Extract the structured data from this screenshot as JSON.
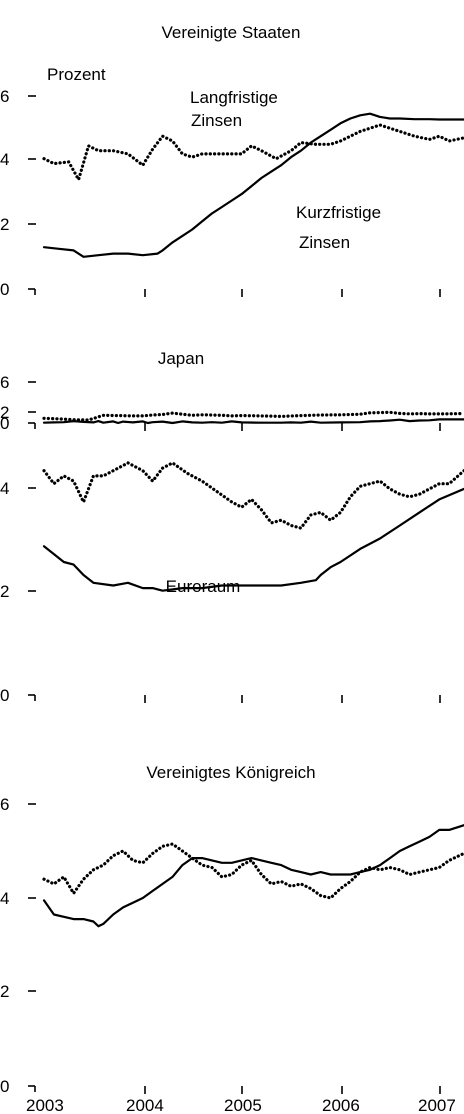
{
  "unit_label": "Prozent",
  "x_tick_labels": [
    "2003",
    "2004",
    "2005",
    "2006",
    "2007"
  ],
  "chart_data": [
    {
      "type": "line",
      "title": "Vereinigte Staaten",
      "ylabel": "Prozent",
      "ylim": [
        0,
        6
      ],
      "yticks": [
        "0",
        "2",
        "4",
        "6"
      ],
      "xlim": [
        2003,
        2007.25
      ],
      "annotations": [
        {
          "text": "Langfristige",
          "line": 1
        },
        {
          "text": "Zinsen",
          "line": 2
        },
        {
          "text": "Kurzfristige",
          "line": 1
        },
        {
          "text": "Zinsen",
          "line": 2
        }
      ],
      "series": [
        {
          "style": "dotted",
          "x": [
            2003.0,
            2003.1,
            2003.25,
            2003.35,
            2003.45,
            2003.55,
            2003.7,
            2003.85,
            2004.0,
            2004.1,
            2004.2,
            2004.3,
            2004.4,
            2004.5,
            2004.6,
            2004.8,
            2005.0,
            2005.1,
            2005.2,
            2005.35,
            2005.5,
            2005.6,
            2005.75,
            2005.9,
            2006.0,
            2006.2,
            2006.4,
            2006.5,
            2006.6,
            2006.75,
            2006.9,
            2007.0,
            2007.1,
            2007.25
          ],
          "values": [
            4.05,
            3.9,
            3.95,
            3.4,
            4.45,
            4.3,
            4.3,
            4.2,
            3.85,
            4.35,
            4.75,
            4.6,
            4.2,
            4.1,
            4.2,
            4.2,
            4.2,
            4.45,
            4.3,
            4.05,
            4.3,
            4.55,
            4.5,
            4.5,
            4.6,
            4.9,
            5.1,
            5.0,
            4.9,
            4.75,
            4.65,
            4.75,
            4.6,
            4.7
          ]
        },
        {
          "style": "solid",
          "x": [
            2003.0,
            2003.15,
            2003.3,
            2003.4,
            2003.55,
            2003.7,
            2003.85,
            2004.0,
            2004.15,
            2004.2,
            2004.3,
            2004.4,
            2004.5,
            2004.6,
            2004.7,
            2004.8,
            2004.9,
            2005.0,
            2005.1,
            2005.2,
            2005.3,
            2005.4,
            2005.5,
            2005.6,
            2005.7,
            2005.8,
            2005.9,
            2006.0,
            2006.1,
            2006.2,
            2006.3,
            2006.4,
            2006.5,
            2006.6,
            2006.75,
            2006.9,
            2007.0,
            2007.25
          ],
          "values": [
            1.3,
            1.25,
            1.2,
            1.0,
            1.05,
            1.1,
            1.1,
            1.05,
            1.1,
            1.2,
            1.45,
            1.65,
            1.85,
            2.1,
            2.35,
            2.55,
            2.75,
            2.95,
            3.2,
            3.45,
            3.65,
            3.85,
            4.1,
            4.3,
            4.55,
            4.75,
            4.95,
            5.15,
            5.3,
            5.4,
            5.45,
            5.35,
            5.3,
            5.3,
            5.28,
            5.28,
            5.27,
            5.27
          ]
        }
      ]
    },
    {
      "type": "line",
      "title": "Japan",
      "ylim": [
        0,
        2
      ],
      "yticks": [
        "0",
        "2"
      ],
      "xlim": [
        2003,
        2007.25
      ],
      "series": [
        {
          "style": "dotted",
          "x": [
            2003.0,
            2003.15,
            2003.3,
            2003.45,
            2003.6,
            2003.75,
            2003.9,
            2004.0,
            2004.1,
            2004.2,
            2004.3,
            2004.4,
            2004.5,
            2004.6,
            2004.7,
            2004.8,
            2004.9,
            2005.0,
            2005.2,
            2005.4,
            2005.6,
            2005.8,
            2006.0,
            2006.2,
            2006.3,
            2006.4,
            2006.5,
            2006.6,
            2006.7,
            2006.8,
            2006.9,
            2007.0,
            2007.25
          ],
          "values": [
            0.85,
            0.75,
            0.6,
            0.55,
            1.4,
            1.35,
            1.3,
            1.3,
            1.45,
            1.55,
            1.8,
            1.6,
            1.4,
            1.5,
            1.45,
            1.4,
            1.3,
            1.35,
            1.3,
            1.2,
            1.35,
            1.45,
            1.5,
            1.6,
            1.85,
            1.9,
            1.95,
            1.75,
            1.65,
            1.7,
            1.65,
            1.65,
            1.7
          ]
        },
        {
          "style": "solid",
          "x": [
            2003.0,
            2003.1,
            2003.2,
            2003.3,
            2003.4,
            2003.5,
            2003.55,
            2003.6,
            2003.7,
            2003.75,
            2003.8,
            2003.9,
            2004.0,
            2004.05,
            2004.1,
            2004.2,
            2004.3,
            2004.4,
            2004.5,
            2004.6,
            2004.7,
            2004.8,
            2004.9,
            2005.0,
            2005.2,
            2005.4,
            2005.5,
            2005.6,
            2005.7,
            2005.8,
            2006.0,
            2006.2,
            2006.3,
            2006.4,
            2006.5,
            2006.6,
            2006.7,
            2006.8,
            2006.9,
            2007.0,
            2007.25
          ],
          "values": [
            0.05,
            0.1,
            0.15,
            0.35,
            0.2,
            0.1,
            0.35,
            0.05,
            0.3,
            0.0,
            0.25,
            0.1,
            0.3,
            0.0,
            0.15,
            0.25,
            0.0,
            0.3,
            0.1,
            0.05,
            0.15,
            0.05,
            0.3,
            0.1,
            0.05,
            0.05,
            0.1,
            0.05,
            0.25,
            0.05,
            0.1,
            0.15,
            0.3,
            0.35,
            0.45,
            0.6,
            0.35,
            0.45,
            0.5,
            0.65,
            0.65
          ]
        }
      ]
    },
    {
      "type": "line",
      "title": "Euroraum",
      "ylim": [
        0,
        6
      ],
      "yticks": [
        "0",
        "2",
        "4",
        "6"
      ],
      "xlim": [
        2003,
        2007.25
      ],
      "series": [
        {
          "style": "dotted",
          "x": [
            2003.0,
            2003.1,
            2003.2,
            2003.3,
            2003.4,
            2003.5,
            2003.6,
            2003.7,
            2003.85,
            2004.0,
            2004.1,
            2004.2,
            2004.3,
            2004.45,
            2004.6,
            2004.75,
            2004.9,
            2005.0,
            2005.1,
            2005.2,
            2005.3,
            2005.4,
            2005.5,
            2005.6,
            2005.7,
            2005.8,
            2005.9,
            2006.0,
            2006.1,
            2006.2,
            2006.3,
            2006.4,
            2006.5,
            2006.6,
            2006.7,
            2006.8,
            2006.9,
            2007.0,
            2007.1,
            2007.25
          ],
          "values": [
            4.3,
            4.05,
            4.2,
            4.1,
            3.7,
            4.2,
            4.2,
            4.3,
            4.45,
            4.3,
            4.1,
            4.35,
            4.45,
            4.25,
            4.1,
            3.9,
            3.7,
            3.6,
            3.75,
            3.55,
            3.3,
            3.35,
            3.25,
            3.2,
            3.45,
            3.5,
            3.35,
            3.5,
            3.8,
            4.0,
            4.05,
            4.1,
            3.95,
            3.85,
            3.8,
            3.85,
            3.95,
            4.05,
            4.05,
            4.3
          ]
        },
        {
          "style": "solid",
          "x": [
            2003.0,
            2003.1,
            2003.2,
            2003.3,
            2003.4,
            2003.5,
            2003.7,
            2003.85,
            2004.0,
            2004.1,
            2004.2,
            2004.4,
            2004.6,
            2004.8,
            2005.0,
            2005.2,
            2005.4,
            2005.6,
            2005.75,
            2005.8,
            2005.9,
            2006.0,
            2006.2,
            2006.4,
            2006.6,
            2006.8,
            2007.0,
            2007.25
          ],
          "values": [
            2.85,
            2.7,
            2.55,
            2.5,
            2.3,
            2.15,
            2.1,
            2.15,
            2.05,
            2.05,
            2.0,
            2.05,
            2.05,
            2.1,
            2.1,
            2.1,
            2.1,
            2.15,
            2.2,
            2.3,
            2.45,
            2.55,
            2.8,
            3.0,
            3.25,
            3.5,
            3.75,
            3.95
          ]
        }
      ]
    },
    {
      "type": "line",
      "title": "Vereinigtes Königreich",
      "ylim": [
        0,
        6
      ],
      "yticks": [
        "0",
        "2",
        "4",
        "6"
      ],
      "xlim": [
        2003,
        2007.25
      ],
      "series": [
        {
          "style": "dotted",
          "x": [
            2003.0,
            2003.1,
            2003.2,
            2003.3,
            2003.4,
            2003.5,
            2003.6,
            2003.7,
            2003.8,
            2003.9,
            2004.0,
            2004.1,
            2004.2,
            2004.3,
            2004.4,
            2004.5,
            2004.6,
            2004.7,
            2004.8,
            2004.9,
            2005.0,
            2005.1,
            2005.2,
            2005.3,
            2005.4,
            2005.5,
            2005.6,
            2005.7,
            2005.8,
            2005.9,
            2006.0,
            2006.1,
            2006.2,
            2006.3,
            2006.4,
            2006.5,
            2006.6,
            2006.7,
            2006.8,
            2006.9,
            2007.0,
            2007.1,
            2007.25
          ],
          "values": [
            4.4,
            4.3,
            4.45,
            4.1,
            4.4,
            4.6,
            4.7,
            4.9,
            5.0,
            4.8,
            4.75,
            4.95,
            5.1,
            5.15,
            5.0,
            4.85,
            4.7,
            4.65,
            4.45,
            4.5,
            4.7,
            4.8,
            4.5,
            4.3,
            4.35,
            4.25,
            4.3,
            4.2,
            4.05,
            4.0,
            4.2,
            4.35,
            4.55,
            4.65,
            4.6,
            4.65,
            4.6,
            4.5,
            4.55,
            4.6,
            4.65,
            4.8,
            4.95
          ]
        },
        {
          "style": "solid",
          "x": [
            2003.0,
            2003.1,
            2003.2,
            2003.3,
            2003.4,
            2003.5,
            2003.55,
            2003.6,
            2003.7,
            2003.8,
            2003.9,
            2004.0,
            2004.1,
            2004.2,
            2004.3,
            2004.4,
            2004.5,
            2004.6,
            2004.7,
            2004.8,
            2004.9,
            2005.0,
            2005.1,
            2005.2,
            2005.3,
            2005.4,
            2005.5,
            2005.6,
            2005.7,
            2005.8,
            2005.9,
            2006.0,
            2006.1,
            2006.2,
            2006.3,
            2006.4,
            2006.5,
            2006.6,
            2006.7,
            2006.8,
            2006.9,
            2007.0,
            2007.1,
            2007.25
          ],
          "values": [
            3.95,
            3.65,
            3.6,
            3.55,
            3.55,
            3.5,
            3.4,
            3.45,
            3.65,
            3.8,
            3.9,
            4.0,
            4.15,
            4.3,
            4.45,
            4.7,
            4.85,
            4.85,
            4.8,
            4.75,
            4.75,
            4.8,
            4.85,
            4.8,
            4.75,
            4.7,
            4.6,
            4.55,
            4.5,
            4.55,
            4.5,
            4.5,
            4.5,
            4.55,
            4.6,
            4.7,
            4.85,
            5.0,
            5.1,
            5.2,
            5.3,
            5.45,
            5.45,
            5.55
          ]
        }
      ]
    }
  ]
}
